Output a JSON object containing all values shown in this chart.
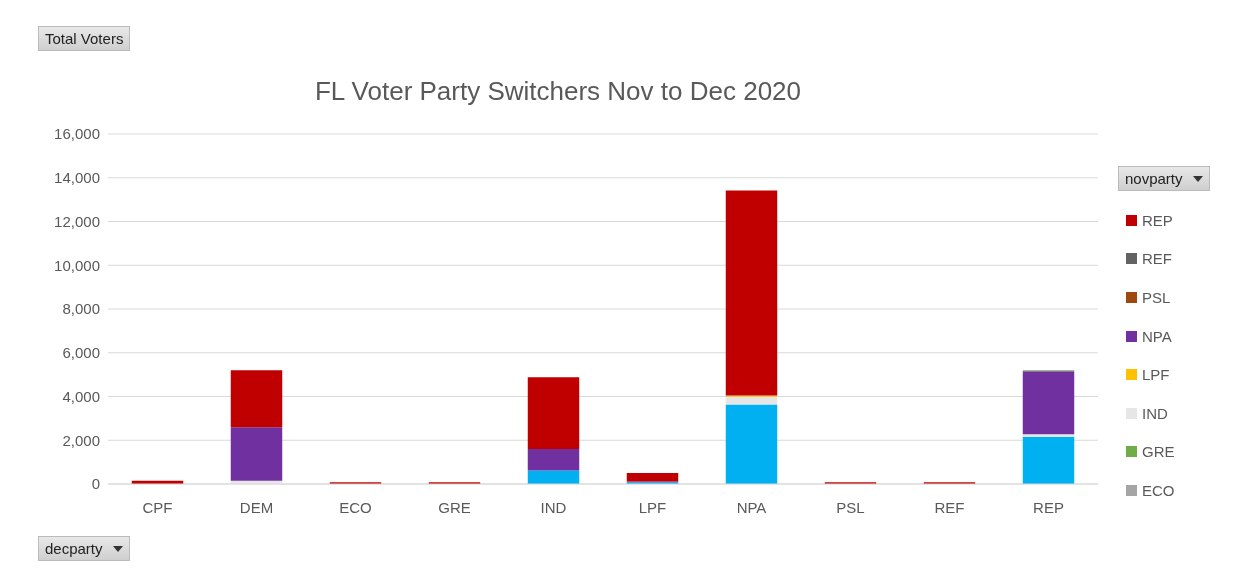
{
  "chart_data": {
    "type": "bar",
    "title": "FL Voter Party Switchers Nov to Dec 2020",
    "annotations": [
      "Total Voters"
    ],
    "xlabel": "decparty",
    "legend_title": "novparty",
    "categories": [
      "CPF",
      "DEM",
      "ECO",
      "GRE",
      "IND",
      "LPF",
      "NPA",
      "PSL",
      "REF",
      "REP"
    ],
    "stacked": true,
    "series": [
      {
        "color": "#00b0f0",
        "values": [
          0,
          0,
          0,
          0,
          620,
          80,
          3630,
          0,
          0,
          2160
        ]
      },
      {
        "name": "ECO",
        "color": "#a5a5a5",
        "values": [
          0,
          0,
          0,
          0,
          0,
          0,
          0,
          0,
          0,
          0
        ]
      },
      {
        "name": "GRE",
        "color": "#70ad47",
        "values": [
          0,
          0,
          0,
          0,
          0,
          0,
          0,
          0,
          0,
          0
        ]
      },
      {
        "name": "IND",
        "color": "#e7e6e6",
        "values": [
          0,
          150,
          0,
          0,
          0,
          0,
          360,
          0,
          0,
          120
        ]
      },
      {
        "name": "LPF",
        "color": "#ffc000",
        "values": [
          0,
          0,
          0,
          0,
          0,
          0,
          60,
          0,
          0,
          0
        ]
      },
      {
        "name": "NPA",
        "color": "#7030a0",
        "values": [
          0,
          2450,
          0,
          0,
          980,
          40,
          0,
          0,
          0,
          2850
        ]
      },
      {
        "name": "PSL",
        "color": "#9e480e",
        "values": [
          0,
          0,
          0,
          0,
          0,
          0,
          0,
          0,
          0,
          0
        ]
      },
      {
        "name": "REF",
        "color": "#636363",
        "values": [
          0,
          0,
          0,
          0,
          0,
          0,
          0,
          0,
          0,
          60
        ]
      },
      {
        "name": "REP",
        "color": "#c00000",
        "values": [
          150,
          2600,
          80,
          80,
          3280,
          380,
          9370,
          80,
          80,
          0
        ]
      }
    ],
    "ylim": [
      0,
      16000
    ],
    "yticks": [
      0,
      {
        "value": 2000,
        "label": "2,000"
      },
      {
        "value": 4000,
        "label": "4,000"
      },
      {
        "value": 6000,
        "label": "6,000"
      },
      {
        "value": 8000,
        "label": "8,000"
      },
      {
        "value": 10000,
        "label": "10,000"
      },
      {
        "value": 12000,
        "label": "12,000"
      },
      {
        "value": 14000,
        "label": "14,000"
      },
      {
        "value": 16000,
        "label": "16,000"
      }
    ],
    "grid": "y",
    "legend": "right"
  }
}
